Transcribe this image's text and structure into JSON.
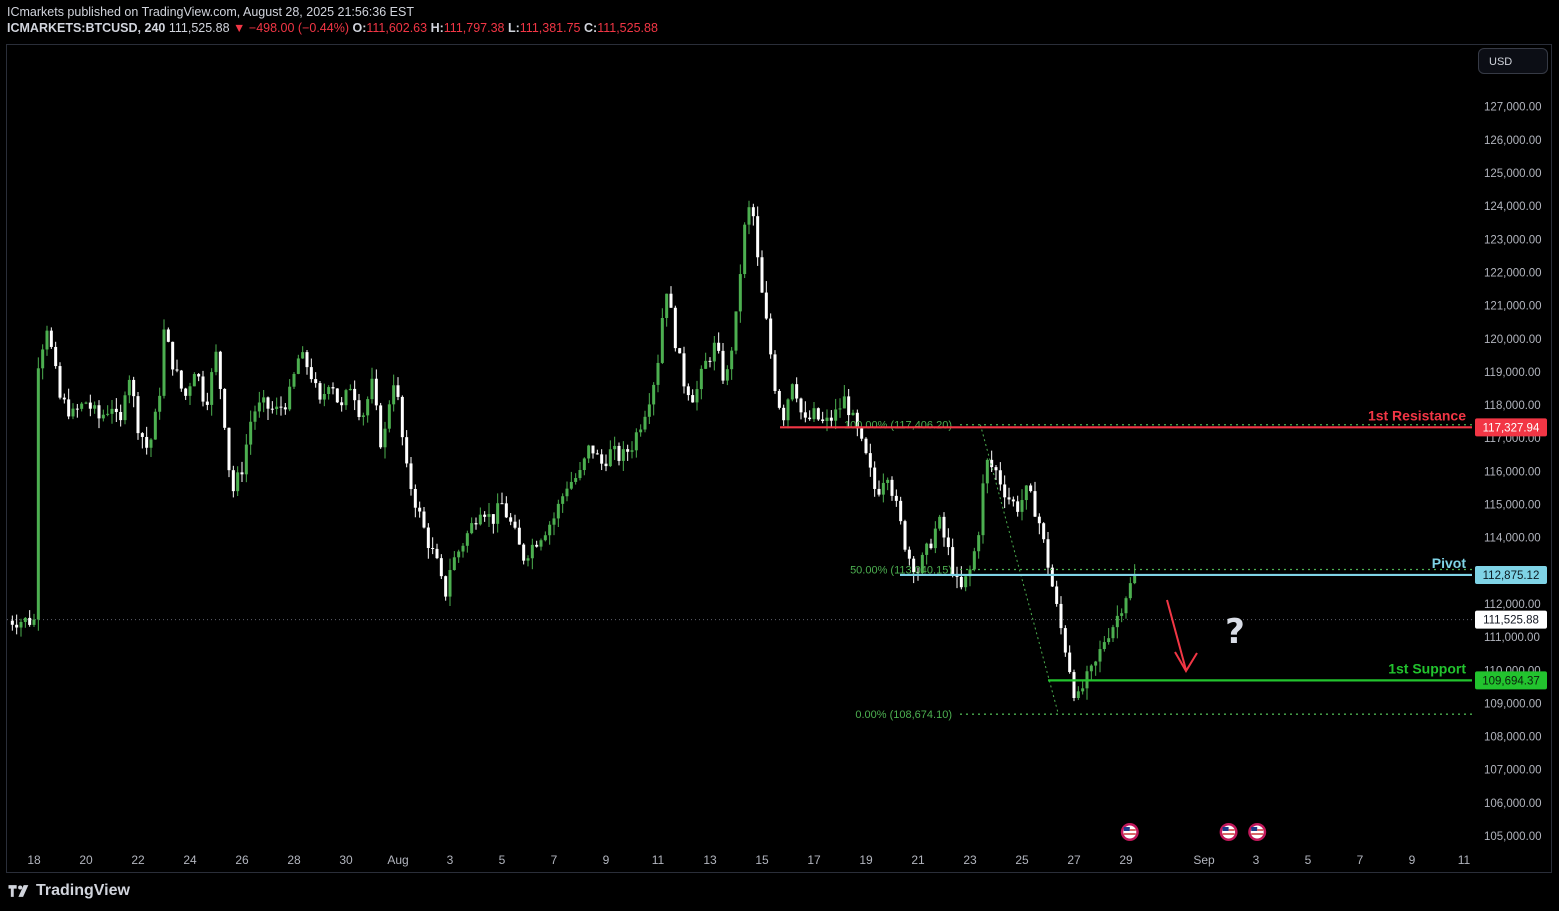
{
  "header": {
    "publisher_line": "ICmarkets published on TradingView.com, August 28, 2025 21:56:36 EST",
    "symbol": "ICMARKETS:BTCUSD, 240",
    "last": "111,525.88",
    "change_arrow": "▼",
    "change": "−498.00 (−0.44%)",
    "o_label": "O:",
    "o_value": "111,602.63",
    "h_label": "H:",
    "h_value": "111,797.38",
    "l_label": "L:",
    "l_value": "111,381.75",
    "c_label": "C:",
    "c_value": "111,525.88"
  },
  "currency_button": "USD",
  "footer": {
    "brand": "TradingView"
  },
  "colors": {
    "up": "#4caf50",
    "down": "#ffffff",
    "resistance": "#f23645",
    "pivot": "#7fd3e6",
    "support": "#22c32e",
    "fib": "#4caf50",
    "arrow": "#f23645"
  },
  "chart_data": {
    "type": "candlestick",
    "ylim": [
      104500,
      127800
    ],
    "y_ticks": [
      105000,
      106000,
      107000,
      108000,
      109000,
      110000,
      111000,
      112000,
      113000,
      114000,
      115000,
      116000,
      117000,
      118000,
      119000,
      120000,
      121000,
      122000,
      123000,
      124000,
      125000,
      126000,
      127000
    ],
    "y_tick_labels": [
      "105,000.00",
      "106,000.00",
      "107,000.00",
      "108,000.00",
      "109,000.00",
      "110,000.00",
      "111,000.00",
      "112,000.00",
      "113,000.00",
      "114,000.00",
      "115,000.00",
      "116,000.00",
      "117,000.00",
      "118,000.00",
      "119,000.00",
      "120,000.00",
      "121,000.00",
      "122,000.00",
      "123,000.00",
      "124,000.00",
      "125,000.00",
      "126,000.00",
      "127,000.00"
    ],
    "x_tick_labels": [
      "18",
      "20",
      "22",
      "24",
      "26",
      "28",
      "30",
      "Aug",
      "3",
      "5",
      "7",
      "9",
      "11",
      "13",
      "15",
      "17",
      "19",
      "21",
      "23",
      "25",
      "27",
      "29",
      "Sep",
      "3",
      "5",
      "7",
      "9",
      "11"
    ],
    "x_tick_day_index": [
      0,
      2,
      4,
      6,
      8,
      10,
      12,
      14,
      16,
      18,
      20,
      22,
      24,
      26,
      28,
      30,
      32,
      34,
      36,
      38,
      40,
      42,
      45,
      47,
      49,
      51,
      53,
      55
    ],
    "x_start_day": 0,
    "price_path": [
      [
        0,
        118800
      ],
      [
        0.5,
        120400
      ],
      [
        1,
        118200
      ],
      [
        1.5,
        117700
      ],
      [
        2,
        118100
      ],
      [
        2.5,
        117600
      ],
      [
        3,
        118000
      ],
      [
        3.3,
        117200
      ],
      [
        3.6,
        119200
      ],
      [
        4,
        117400
      ],
      [
        4.4,
        116600
      ],
      [
        4.8,
        118100
      ],
      [
        5,
        120200
      ],
      [
        5.4,
        119100
      ],
      [
        5.8,
        118200
      ],
      [
        6.2,
        119200
      ],
      [
        6.6,
        118000
      ],
      [
        7,
        119500
      ],
      [
        7.3,
        117800
      ],
      [
        7.6,
        115300
      ],
      [
        8,
        116100
      ],
      [
        8.4,
        117800
      ],
      [
        8.8,
        118000
      ],
      [
        9.3,
        117800
      ],
      [
        9.8,
        118200
      ],
      [
        10.2,
        119500
      ],
      [
        10.6,
        119100
      ],
      [
        11,
        118000
      ],
      [
        11.4,
        118900
      ],
      [
        11.8,
        117800
      ],
      [
        12.2,
        118700
      ],
      [
        12.6,
        117600
      ],
      [
        13,
        118600
      ],
      [
        13.4,
        116600
      ],
      [
        13.8,
        118900
      ],
      [
        14,
        118100
      ],
      [
        14.3,
        116100
      ],
      [
        14.7,
        115000
      ],
      [
        15.1,
        114000
      ],
      [
        15.5,
        113200
      ],
      [
        15.8,
        112200
      ],
      [
        16,
        113100
      ],
      [
        16.4,
        113700
      ],
      [
        16.8,
        114300
      ],
      [
        17.2,
        115000
      ],
      [
        17.6,
        114500
      ],
      [
        18,
        115000
      ],
      [
        18.4,
        114300
      ],
      [
        18.8,
        113400
      ],
      [
        19.2,
        113800
      ],
      [
        19.6,
        114200
      ],
      [
        20,
        114600
      ],
      [
        20.5,
        115600
      ],
      [
        21,
        115900
      ],
      [
        21.4,
        116800
      ],
      [
        21.8,
        116200
      ],
      [
        22.2,
        116600
      ],
      [
        22.6,
        116400
      ],
      [
        23,
        116800
      ],
      [
        23.4,
        117600
      ],
      [
        23.8,
        118600
      ],
      [
        24,
        119400
      ],
      [
        24.3,
        121700
      ],
      [
        24.7,
        119800
      ],
      [
        25,
        118700
      ],
      [
        25.4,
        118200
      ],
      [
        25.8,
        119200
      ],
      [
        26.2,
        119800
      ],
      [
        26.6,
        118600
      ],
      [
        27,
        120600
      ],
      [
        27.3,
        123200
      ],
      [
        27.6,
        124200
      ],
      [
        27.9,
        121800
      ],
      [
        28.2,
        120300
      ],
      [
        28.5,
        118600
      ],
      [
        28.8,
        117600
      ],
      [
        29.2,
        118900
      ],
      [
        29.6,
        117400
      ],
      [
        30,
        117700
      ],
      [
        30.4,
        117400
      ],
      [
        30.8,
        117700
      ],
      [
        31.2,
        118200
      ],
      [
        31.6,
        117300
      ],
      [
        32,
        116400
      ],
      [
        32.4,
        115300
      ],
      [
        32.8,
        116100
      ],
      [
        33.2,
        114800
      ],
      [
        33.6,
        113500
      ],
      [
        34,
        113000
      ],
      [
        34.4,
        113700
      ],
      [
        34.8,
        114500
      ],
      [
        35.2,
        113500
      ],
      [
        35.6,
        112300
      ],
      [
        36,
        113000
      ],
      [
        36.3,
        114000
      ],
      [
        36.6,
        116300
      ],
      [
        37,
        116000
      ],
      [
        37.4,
        115300
      ],
      [
        37.8,
        114900
      ],
      [
        38.2,
        115400
      ],
      [
        38.6,
        114700
      ],
      [
        39,
        113200
      ],
      [
        39.4,
        111600
      ],
      [
        39.8,
        110200
      ],
      [
        40.1,
        109000
      ],
      [
        40.4,
        109600
      ],
      [
        40.8,
        110100
      ],
      [
        41.2,
        111000
      ],
      [
        41.6,
        111500
      ],
      [
        42,
        112300
      ],
      [
        42.4,
        112900
      ],
      [
        42.7,
        111900
      ],
      [
        43,
        111500
      ]
    ],
    "levels": [
      {
        "label": "1st Resistance",
        "value": 117327.94,
        "value_label": "117,327.94",
        "color_key": "resistance"
      },
      {
        "label": "Pivot",
        "value": 112875.12,
        "value_label": "112,875.12",
        "color_key": "pivot"
      },
      {
        "label": "1st Support",
        "value": 109694.37,
        "value_label": "109,694.37",
        "color_key": "support"
      }
    ],
    "fib_levels": [
      {
        "label": "100.00% (117,406.20)",
        "value": 117406.2
      },
      {
        "label": "50.00% (113,040.15)",
        "value": 113040.15
      },
      {
        "label": "0.00% (108,674.10)",
        "value": 108674.1
      }
    ],
    "last_price": 111525.88,
    "last_price_label": "111,525.88",
    "annotation": "?",
    "event_flags_day": [
      42.3,
      46.1,
      47.2
    ]
  }
}
